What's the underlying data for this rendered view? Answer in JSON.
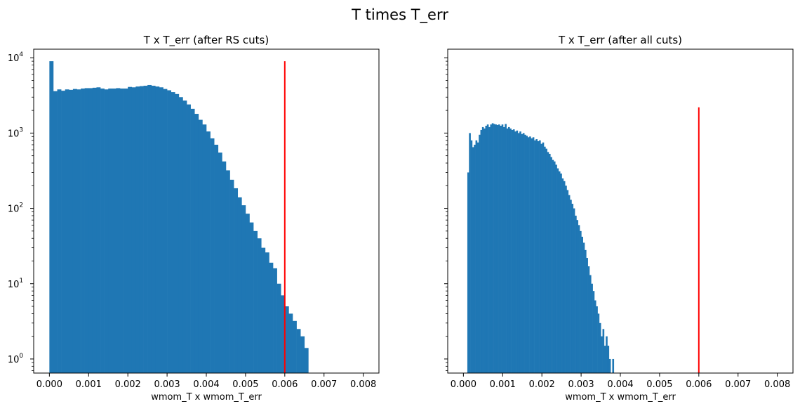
{
  "figure": {
    "suptitle": "T times T_err"
  },
  "chart_data": [
    {
      "type": "bar",
      "title": "T x T_err (after RS cuts)",
      "xlabel": "wmom_T x wmom_T_err",
      "ylabel": "",
      "yscale": "log",
      "xlim": [
        -0.0004,
        0.0084
      ],
      "ylim": [
        0.65,
        13000
      ],
      "xticks": [
        "0.000",
        "0.001",
        "0.002",
        "0.003",
        "0.004",
        "0.005",
        "0.006",
        "0.007",
        "0.008"
      ],
      "yticks": [
        "10^0",
        "10^1",
        "10^2",
        "10^3",
        "10^4"
      ],
      "bin_start": 0.0,
      "bin_width": 0.0001,
      "counts": [
        9000,
        3600,
        3800,
        3650,
        3800,
        3750,
        3850,
        3800,
        3900,
        3950,
        3950,
        4000,
        4050,
        3900,
        3800,
        3900,
        3900,
        3950,
        3900,
        3900,
        4100,
        4050,
        4150,
        4200,
        4250,
        4350,
        4250,
        4150,
        4050,
        3850,
        3700,
        3500,
        3300,
        3000,
        2700,
        2400,
        2100,
        1800,
        1500,
        1300,
        1050,
        850,
        700,
        550,
        420,
        320,
        240,
        185,
        140,
        110,
        85,
        65,
        50,
        40,
        30,
        26,
        19,
        16,
        10,
        7,
        5,
        4,
        3.2,
        2.5,
        2,
        1.4,
        0.5,
        0.5,
        0.5,
        0.5,
        0.5,
        0.5,
        0.5,
        0.5,
        0.5,
        0.5,
        0.5,
        0.5,
        0.5,
        0.5
      ],
      "threshold_line": {
        "x": 0.006,
        "ymax": 9000,
        "color": "#ff0000"
      },
      "bar_color": "#1f77b4"
    },
    {
      "type": "bar",
      "title": "T x T_err (after all cuts)",
      "xlabel": "wmom_T x wmom_T_err",
      "ylabel": "",
      "yscale": "log",
      "xlim": [
        -0.0004,
        0.0084
      ],
      "ylim": [
        0.65,
        13000
      ],
      "xticks": [
        "0.000",
        "0.001",
        "0.002",
        "0.003",
        "0.004",
        "0.005",
        "0.006",
        "0.007",
        "0.008"
      ],
      "bin_start": 0.0001,
      "bin_width": 4.15e-05,
      "counts": [
        300,
        1000,
        800,
        650,
        700,
        800,
        750,
        950,
        1100,
        1200,
        1150,
        1250,
        1300,
        1200,
        1300,
        1350,
        1320,
        1300,
        1280,
        1300,
        1250,
        1300,
        1200,
        1320,
        1150,
        1200,
        1150,
        1100,
        1120,
        1050,
        1080,
        1000,
        1050,
        970,
        1000,
        950,
        920,
        880,
        900,
        850,
        880,
        800,
        830,
        780,
        800,
        720,
        750,
        660,
        620,
        560,
        530,
        480,
        440,
        420,
        380,
        340,
        310,
        290,
        250,
        230,
        200,
        175,
        150,
        130,
        115,
        100,
        80,
        70,
        60,
        50,
        42,
        35,
        28,
        22,
        17,
        13,
        10,
        8,
        6,
        5,
        4,
        3,
        2,
        2.5,
        1.5,
        2,
        1.5,
        1,
        0.5,
        1,
        0.5
      ],
      "threshold_line": {
        "x": 0.006,
        "ymax": 2200,
        "color": "#ff0000"
      },
      "bar_color": "#1f77b4"
    }
  ]
}
